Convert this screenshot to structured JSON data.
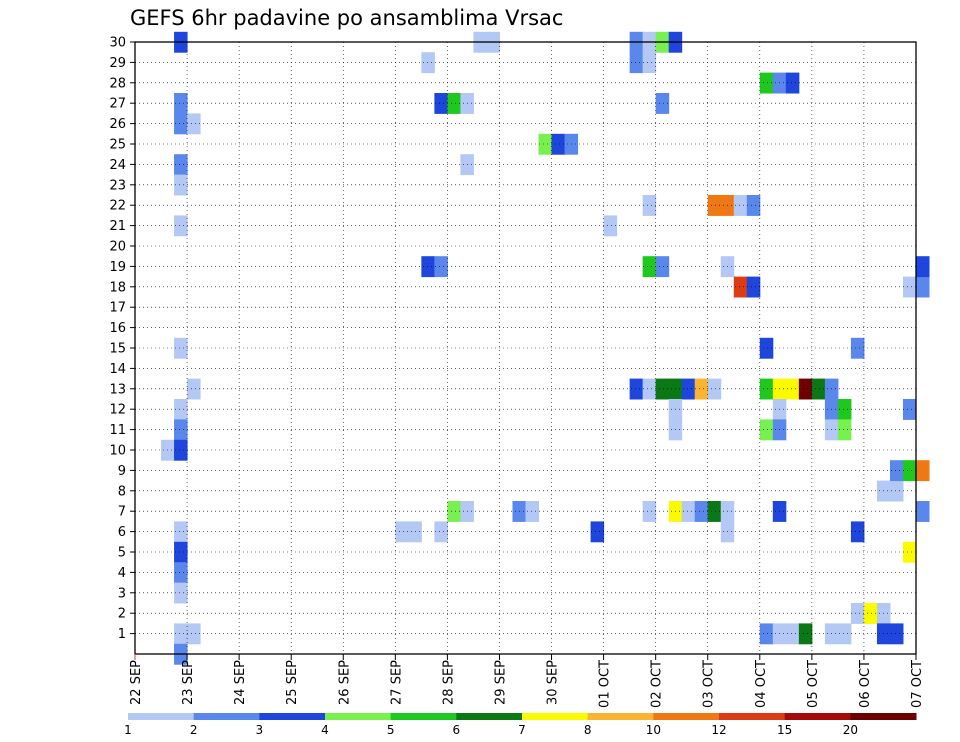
{
  "chart_data": {
    "type": "heatmap",
    "title": "GEFS 6hr padavine po ansamblima Vrsac",
    "x_tick_labels": [
      "22 SEP",
      "23 SEP",
      "24 SEP",
      "25 SEP",
      "26 SEP",
      "27 SEP",
      "28 SEP",
      "29 SEP",
      "30 SEP",
      "01 OCT",
      "02 OCT",
      "03 OCT",
      "04 OCT",
      "05 OCT",
      "06 OCT",
      "07 OCT"
    ],
    "y_tick_labels": [
      "1",
      "2",
      "3",
      "4",
      "5",
      "6",
      "7",
      "8",
      "9",
      "10",
      "11",
      "12",
      "13",
      "14",
      "15",
      "16",
      "17",
      "18",
      "19",
      "20",
      "21",
      "22",
      "23",
      "24",
      "25",
      "26",
      "27",
      "28",
      "29",
      "30"
    ],
    "ylim": [
      0,
      30
    ],
    "grid": true,
    "time_step_hours": 6,
    "colorbar": {
      "labels": [
        "1",
        "2",
        "3",
        "4",
        "5",
        "6",
        "7",
        "8",
        "10",
        "12",
        "15",
        "20"
      ],
      "colors": [
        "#b4c8f5",
        "#5a87eb",
        "#1e46dc",
        "#78f050",
        "#1ec81e",
        "#0a7814",
        "#fafa00",
        "#fab432",
        "#f07814",
        "#dc3c14",
        "#a50a0a",
        "#6e0000"
      ]
    },
    "cells": [
      {
        "d": "09-22",
        "h": 18,
        "m": 30,
        "c": 3
      },
      {
        "d": "09-22",
        "h": 18,
        "m": 27,
        "c": 2
      },
      {
        "d": "09-22",
        "h": 18,
        "m": 26,
        "c": 2
      },
      {
        "d": "09-23",
        "h": 0,
        "m": 26,
        "c": 1
      },
      {
        "d": "09-22",
        "h": 18,
        "m": 24,
        "c": 2
      },
      {
        "d": "09-22",
        "h": 18,
        "m": 23,
        "c": 1
      },
      {
        "d": "09-22",
        "h": 18,
        "m": 21,
        "c": 1
      },
      {
        "d": "09-22",
        "h": 18,
        "m": 15,
        "c": 1
      },
      {
        "d": "09-23",
        "h": 0,
        "m": 13,
        "c": 1
      },
      {
        "d": "09-22",
        "h": 18,
        "m": 12,
        "c": 1
      },
      {
        "d": "09-22",
        "h": 18,
        "m": 11,
        "c": 2
      },
      {
        "d": "09-22",
        "h": 12,
        "m": 10,
        "c": 1
      },
      {
        "d": "09-22",
        "h": 18,
        "m": 10,
        "c": 3
      },
      {
        "d": "09-22",
        "h": 18,
        "m": 6,
        "c": 1
      },
      {
        "d": "09-22",
        "h": 18,
        "m": 5,
        "c": 3
      },
      {
        "d": "09-22",
        "h": 18,
        "m": 4,
        "c": 2
      },
      {
        "d": "09-22",
        "h": 18,
        "m": 3,
        "c": 1
      },
      {
        "d": "09-22",
        "h": 18,
        "m": 1,
        "c": 1
      },
      {
        "d": "09-23",
        "h": 0,
        "m": 1,
        "c": 1
      },
      {
        "d": "09-22",
        "h": 18,
        "m": 0,
        "c": 2
      },
      {
        "d": "09-27",
        "h": 0,
        "m": 6,
        "c": 1
      },
      {
        "d": "09-27",
        "h": 6,
        "m": 6,
        "c": 1
      },
      {
        "d": "09-27",
        "h": 18,
        "m": 6,
        "c": 1
      },
      {
        "d": "09-27",
        "h": 12,
        "m": 29,
        "c": 1
      },
      {
        "d": "09-27",
        "h": 18,
        "m": 27,
        "c": 3
      },
      {
        "d": "09-28",
        "h": 0,
        "m": 27,
        "c": 5
      },
      {
        "d": "09-28",
        "h": 6,
        "m": 27,
        "c": 1
      },
      {
        "d": "09-27",
        "h": 12,
        "m": 19,
        "c": 3
      },
      {
        "d": "09-27",
        "h": 18,
        "m": 19,
        "c": 2
      },
      {
        "d": "09-28",
        "h": 6,
        "m": 24,
        "c": 1
      },
      {
        "d": "09-28",
        "h": 0,
        "m": 7,
        "c": 4
      },
      {
        "d": "09-28",
        "h": 6,
        "m": 7,
        "c": 1
      },
      {
        "d": "09-28",
        "h": 12,
        "m": 30,
        "c": 1
      },
      {
        "d": "09-28",
        "h": 18,
        "m": 30,
        "c": 1
      },
      {
        "d": "09-29",
        "h": 6,
        "m": 7,
        "c": 2
      },
      {
        "d": "09-29",
        "h": 12,
        "m": 7,
        "c": 1
      },
      {
        "d": "09-29",
        "h": 18,
        "m": 25,
        "c": 4
      },
      {
        "d": "09-30",
        "h": 0,
        "m": 25,
        "c": 3
      },
      {
        "d": "09-30",
        "h": 6,
        "m": 25,
        "c": 2
      },
      {
        "d": "09-30",
        "h": 18,
        "m": 6,
        "c": 3
      },
      {
        "d": "10-01",
        "h": 0,
        "m": 21,
        "c": 1
      },
      {
        "d": "10-01",
        "h": 12,
        "m": 29,
        "c": 2
      },
      {
        "d": "10-01",
        "h": 18,
        "m": 29,
        "c": 1
      },
      {
        "d": "10-01",
        "h": 12,
        "m": 30,
        "c": 2
      },
      {
        "d": "10-01",
        "h": 18,
        "m": 30,
        "c": 1
      },
      {
        "d": "10-02",
        "h": 0,
        "m": 30,
        "c": 4
      },
      {
        "d": "10-02",
        "h": 6,
        "m": 30,
        "c": 3
      },
      {
        "d": "10-02",
        "h": 0,
        "m": 27,
        "c": 2
      },
      {
        "d": "10-01",
        "h": 18,
        "m": 22,
        "c": 1
      },
      {
        "d": "10-01",
        "h": 18,
        "m": 19,
        "c": 5
      },
      {
        "d": "10-02",
        "h": 0,
        "m": 19,
        "c": 2
      },
      {
        "d": "10-01",
        "h": 12,
        "m": 13,
        "c": 3
      },
      {
        "d": "10-01",
        "h": 18,
        "m": 13,
        "c": 1
      },
      {
        "d": "10-02",
        "h": 0,
        "m": 13,
        "c": 6
      },
      {
        "d": "10-02",
        "h": 6,
        "m": 13,
        "c": 6
      },
      {
        "d": "10-02",
        "h": 12,
        "m": 13,
        "c": 3
      },
      {
        "d": "10-02",
        "h": 18,
        "m": 13,
        "c": 8
      },
      {
        "d": "10-03",
        "h": 0,
        "m": 13,
        "c": 1
      },
      {
        "d": "10-02",
        "h": 6,
        "m": 12,
        "c": 1
      },
      {
        "d": "10-02",
        "h": 6,
        "m": 11,
        "c": 1
      },
      {
        "d": "10-01",
        "h": 18,
        "m": 7,
        "c": 1
      },
      {
        "d": "10-02",
        "h": 6,
        "m": 7,
        "c": 7
      },
      {
        "d": "10-02",
        "h": 12,
        "m": 7,
        "c": 1
      },
      {
        "d": "10-02",
        "h": 18,
        "m": 7,
        "c": 2
      },
      {
        "d": "10-03",
        "h": 0,
        "m": 7,
        "c": 6
      },
      {
        "d": "10-03",
        "h": 6,
        "m": 7,
        "c": 1
      },
      {
        "d": "10-03",
        "h": 6,
        "m": 6,
        "c": 1
      },
      {
        "d": "10-03",
        "h": 0,
        "m": 22,
        "c": 9
      },
      {
        "d": "10-03",
        "h": 6,
        "m": 22,
        "c": 9
      },
      {
        "d": "10-03",
        "h": 12,
        "m": 22,
        "c": 1
      },
      {
        "d": "10-03",
        "h": 18,
        "m": 22,
        "c": 2
      },
      {
        "d": "10-03",
        "h": 6,
        "m": 19,
        "c": 1
      },
      {
        "d": "10-03",
        "h": 12,
        "m": 18,
        "c": 10
      },
      {
        "d": "10-03",
        "h": 18,
        "m": 18,
        "c": 3
      },
      {
        "d": "10-04",
        "h": 0,
        "m": 28,
        "c": 5
      },
      {
        "d": "10-04",
        "h": 6,
        "m": 28,
        "c": 2
      },
      {
        "d": "10-04",
        "h": 12,
        "m": 28,
        "c": 3
      },
      {
        "d": "10-04",
        "h": 0,
        "m": 15,
        "c": 3
      },
      {
        "d": "10-04",
        "h": 0,
        "m": 13,
        "c": 5
      },
      {
        "d": "10-04",
        "h": 6,
        "m": 13,
        "c": 7
      },
      {
        "d": "10-04",
        "h": 12,
        "m": 13,
        "c": 7
      },
      {
        "d": "10-04",
        "h": 18,
        "m": 13,
        "c": 12
      },
      {
        "d": "10-05",
        "h": 0,
        "m": 13,
        "c": 6
      },
      {
        "d": "10-05",
        "h": 6,
        "m": 13,
        "c": 2
      },
      {
        "d": "10-04",
        "h": 6,
        "m": 12,
        "c": 1
      },
      {
        "d": "10-04",
        "h": 0,
        "m": 11,
        "c": 4
      },
      {
        "d": "10-04",
        "h": 6,
        "m": 11,
        "c": 2
      },
      {
        "d": "10-05",
        "h": 6,
        "m": 12,
        "c": 2
      },
      {
        "d": "10-05",
        "h": 12,
        "m": 12,
        "c": 5
      },
      {
        "d": "10-05",
        "h": 6,
        "m": 11,
        "c": 1
      },
      {
        "d": "10-05",
        "h": 12,
        "m": 11,
        "c": 4
      },
      {
        "d": "10-04",
        "h": 6,
        "m": 7,
        "c": 3
      },
      {
        "d": "10-04",
        "h": 0,
        "m": 1,
        "c": 2
      },
      {
        "d": "10-04",
        "h": 6,
        "m": 1,
        "c": 1
      },
      {
        "d": "10-04",
        "h": 12,
        "m": 1,
        "c": 1
      },
      {
        "d": "10-04",
        "h": 18,
        "m": 1,
        "c": 6
      },
      {
        "d": "10-05",
        "h": 6,
        "m": 1,
        "c": 1
      },
      {
        "d": "10-05",
        "h": 12,
        "m": 1,
        "c": 1
      },
      {
        "d": "10-05",
        "h": 18,
        "m": 15,
        "c": 2
      },
      {
        "d": "10-05",
        "h": 18,
        "m": 6,
        "c": 3
      },
      {
        "d": "10-05",
        "h": 18,
        "m": 2,
        "c": 1
      },
      {
        "d": "10-06",
        "h": 0,
        "m": 2,
        "c": 7
      },
      {
        "d": "10-06",
        "h": 6,
        "m": 2,
        "c": 1
      },
      {
        "d": "10-06",
        "h": 6,
        "m": 1,
        "c": 3
      },
      {
        "d": "10-06",
        "h": 12,
        "m": 1,
        "c": 3
      },
      {
        "d": "10-06",
        "h": 6,
        "m": 8,
        "c": 1
      },
      {
        "d": "10-06",
        "h": 12,
        "m": 8,
        "c": 1
      },
      {
        "d": "10-06",
        "h": 12,
        "m": 9,
        "c": 2
      },
      {
        "d": "10-06",
        "h": 18,
        "m": 9,
        "c": 5
      },
      {
        "d": "10-07",
        "h": 0,
        "m": 9,
        "c": 9
      },
      {
        "d": "10-06",
        "h": 18,
        "m": 5,
        "c": 7
      },
      {
        "d": "10-07",
        "h": 0,
        "m": 7,
        "c": 2
      },
      {
        "d": "10-06",
        "h": 18,
        "m": 12,
        "c": 2
      },
      {
        "d": "10-06",
        "h": 18,
        "m": 18,
        "c": 1
      },
      {
        "d": "10-07",
        "h": 0,
        "m": 18,
        "c": 2
      },
      {
        "d": "10-07",
        "h": 0,
        "m": 19,
        "c": 3
      }
    ]
  }
}
